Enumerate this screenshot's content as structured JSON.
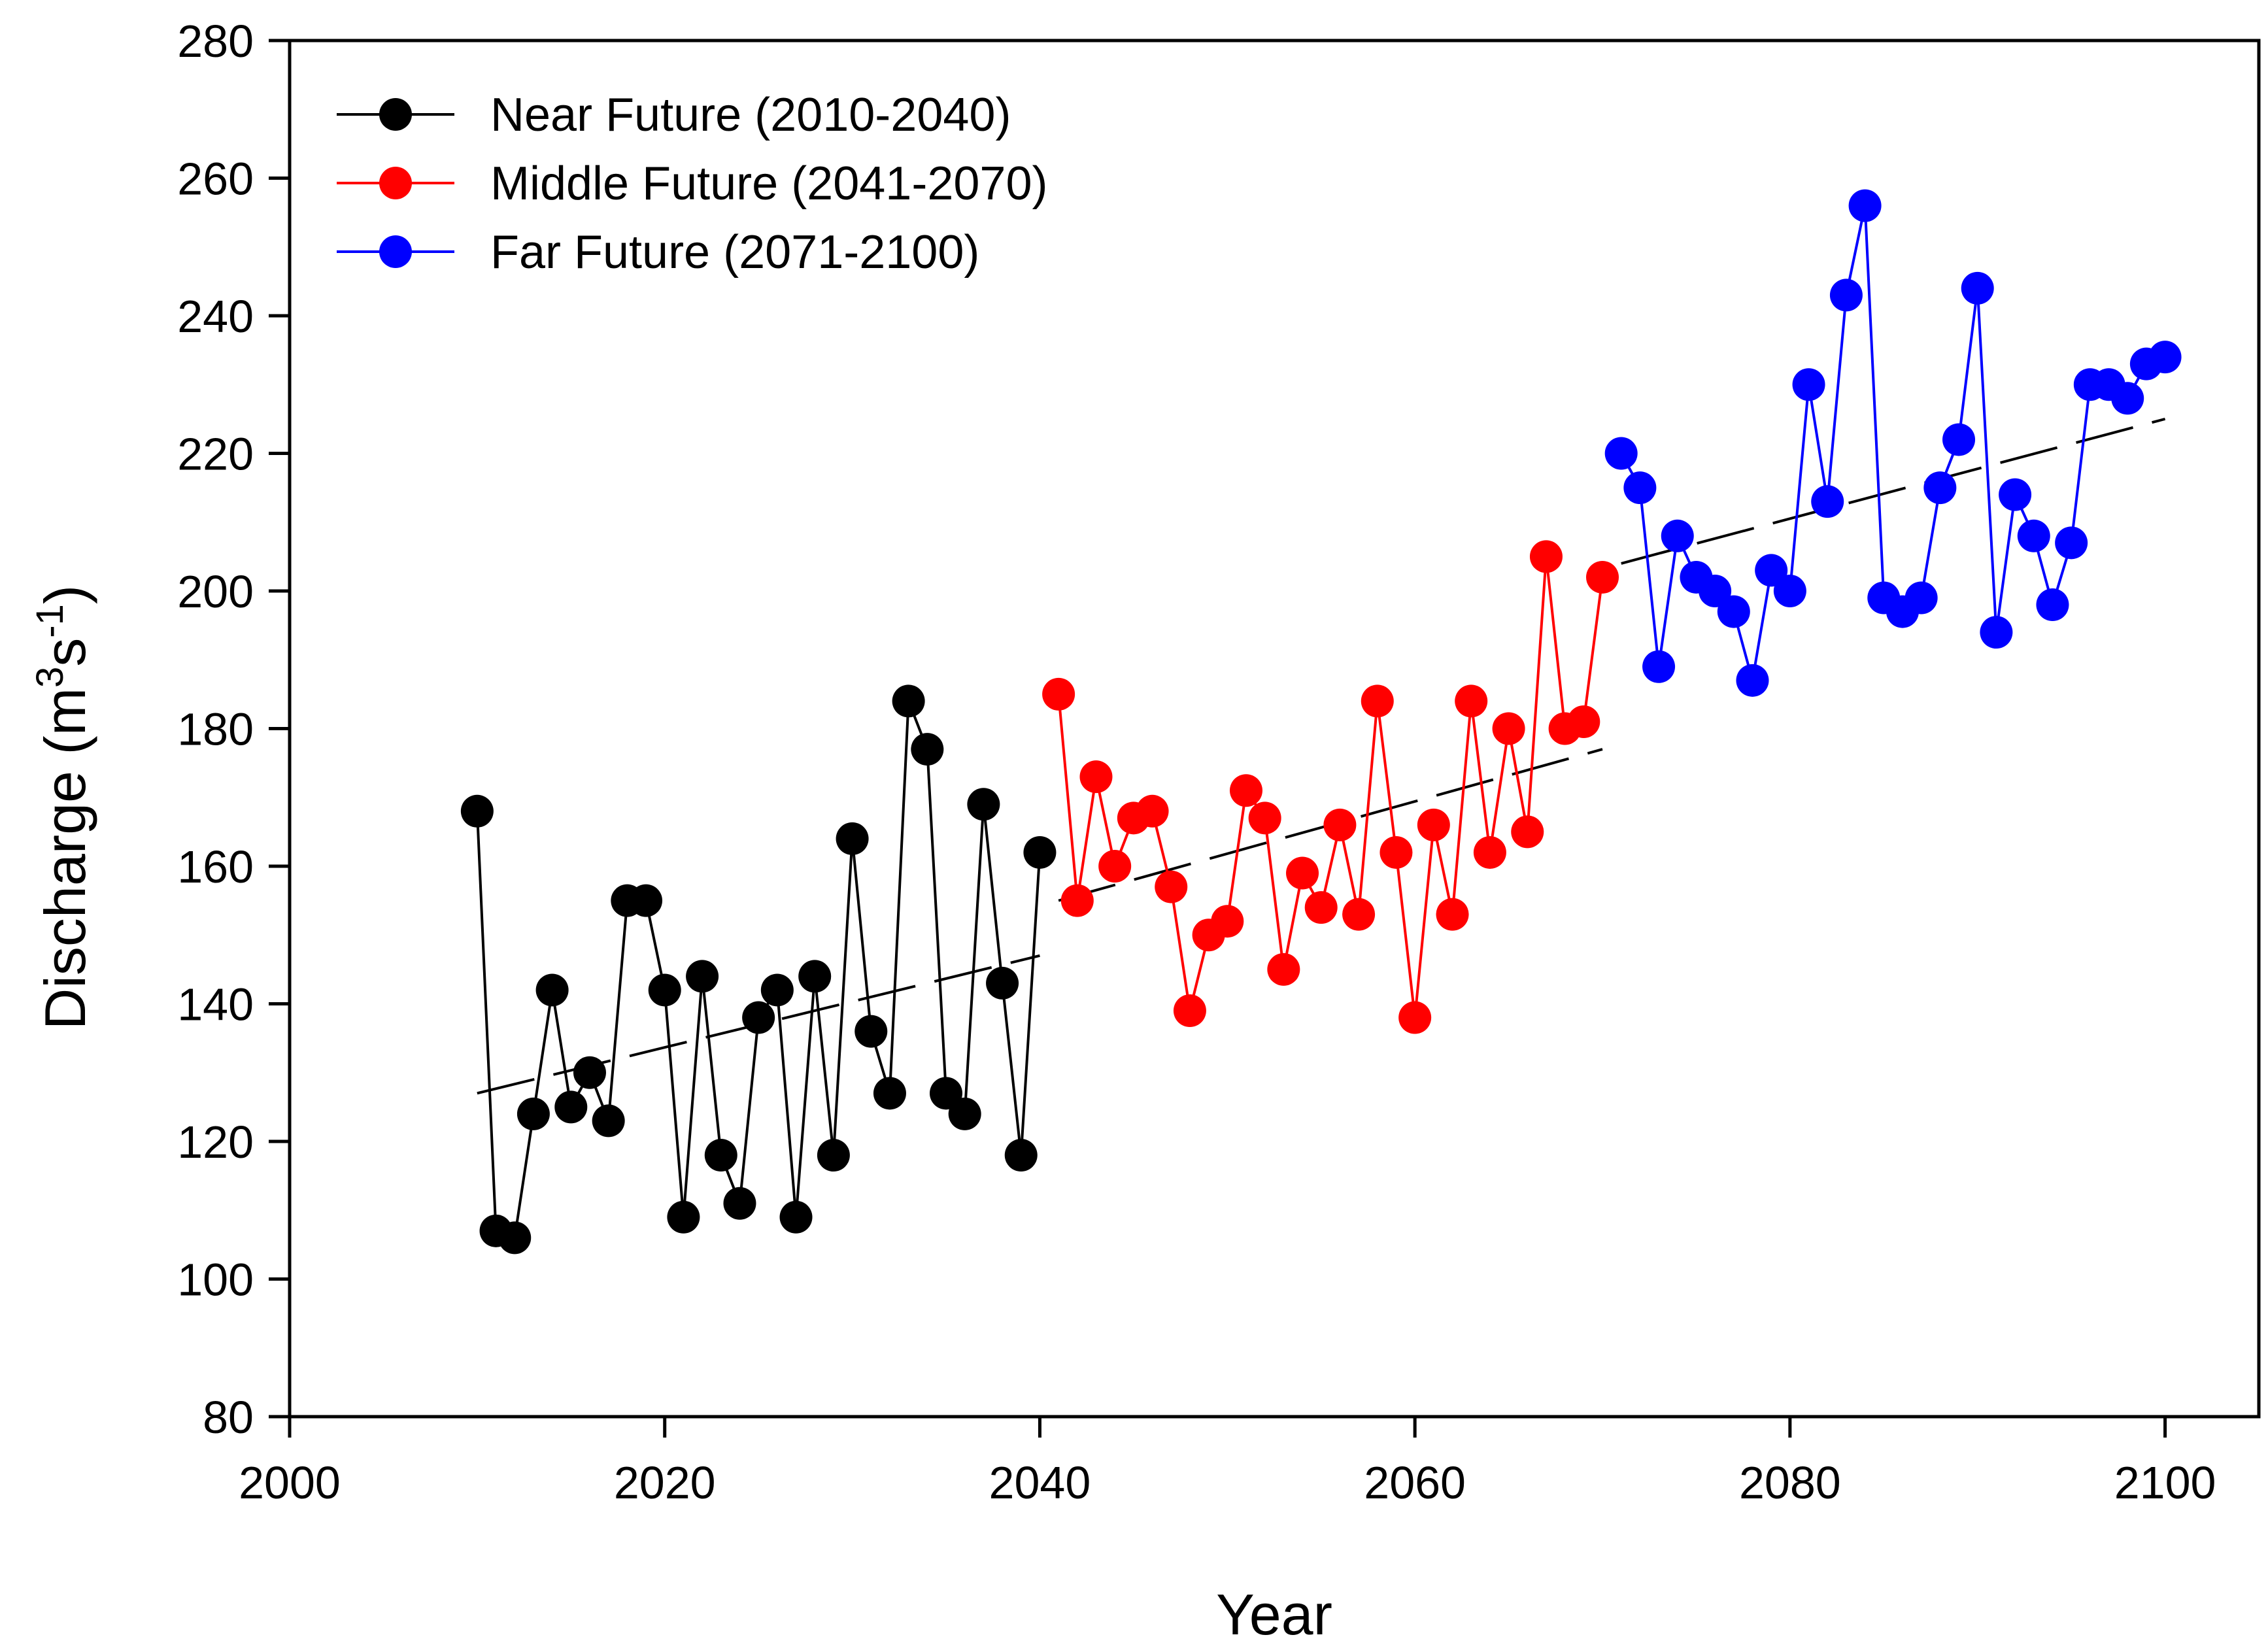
{
  "chart_data": {
    "type": "line",
    "title": "",
    "xlabel": "Year",
    "ylabel": "Discharge (m³s⁻¹)",
    "ylabel_parts": {
      "base": "Discharge (m",
      "sup1": "3",
      "mid": "s",
      "sup2": "-1",
      "end": ")"
    },
    "xlim": [
      2000,
      2105
    ],
    "ylim": [
      80,
      280
    ],
    "xticks": [
      2000,
      2020,
      2040,
      2060,
      2080,
      2100
    ],
    "yticks": [
      80,
      100,
      120,
      140,
      160,
      180,
      200,
      220,
      240,
      260,
      280
    ],
    "legend_position": "top-left",
    "grid": false,
    "series": [
      {
        "name": "Near Future (2010-2040)",
        "color": "#000000",
        "x": [
          2010,
          2011,
          2012,
          2013,
          2014,
          2015,
          2016,
          2017,
          2018,
          2019,
          2020,
          2021,
          2022,
          2023,
          2024,
          2025,
          2026,
          2027,
          2028,
          2029,
          2030,
          2031,
          2032,
          2033,
          2034,
          2035,
          2036,
          2037,
          2038,
          2039,
          2040
        ],
        "y": [
          168,
          107,
          106,
          124,
          142,
          125,
          130,
          123,
          155,
          155,
          142,
          109,
          144,
          118,
          111,
          138,
          142,
          109,
          144,
          118,
          164,
          136,
          127,
          184,
          177,
          127,
          124,
          169,
          143,
          118,
          162
        ],
        "trend": {
          "x": [
            2010,
            2040
          ],
          "y": [
            127,
            147
          ]
        }
      },
      {
        "name": "Middle Future (2041-2070)",
        "color": "#ff0000",
        "x": [
          2041,
          2042,
          2043,
          2044,
          2045,
          2046,
          2047,
          2048,
          2049,
          2050,
          2051,
          2052,
          2053,
          2054,
          2055,
          2056,
          2057,
          2058,
          2059,
          2060,
          2061,
          2062,
          2063,
          2064,
          2065,
          2066,
          2067,
          2068,
          2069,
          2070
        ],
        "y": [
          185,
          155,
          173,
          160,
          167,
          168,
          157,
          139,
          150,
          152,
          171,
          167,
          145,
          159,
          154,
          166,
          153,
          184,
          162,
          138,
          166,
          153,
          184,
          162,
          180,
          165,
          205,
          180,
          181,
          202
        ],
        "trend": {
          "x": [
            2041,
            2070
          ],
          "y": [
            155,
            177
          ]
        }
      },
      {
        "name": "Far Future (2071-2100)",
        "color": "#0000ff",
        "x": [
          2071,
          2072,
          2073,
          2074,
          2075,
          2076,
          2077,
          2078,
          2079,
          2080,
          2081,
          2082,
          2083,
          2084,
          2085,
          2086,
          2087,
          2088,
          2089,
          2090,
          2091,
          2092,
          2093,
          2094,
          2095,
          2096,
          2097,
          2098,
          2099,
          2100
        ],
        "y": [
          220,
          215,
          189,
          208,
          202,
          200,
          197,
          187,
          203,
          200,
          230,
          213,
          243,
          256,
          199,
          197,
          199,
          215,
          222,
          244,
          194,
          214,
          208,
          198,
          207,
          230,
          230,
          228,
          233,
          234
        ],
        "trend": {
          "x": [
            2071,
            2100
          ],
          "y": [
            204,
            225
          ]
        }
      }
    ]
  }
}
